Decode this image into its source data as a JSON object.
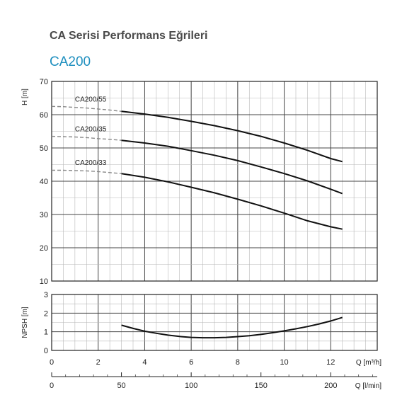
{
  "header": {
    "title": "CA Serisi Performans Eğrileri",
    "model": "CA200"
  },
  "chart_data": [
    {
      "type": "line",
      "name": "head-chart",
      "ylabel": "H [m]",
      "xlim": [
        0,
        14
      ],
      "ylim": [
        10,
        70
      ],
      "x_ticks": [
        0,
        2,
        4,
        6,
        8,
        10,
        12
      ],
      "y_ticks": [
        10,
        20,
        30,
        40,
        50,
        60,
        70
      ],
      "grid": true,
      "series": [
        {
          "name": "CA200/55",
          "dashed_x": [
            0,
            0.5,
            1,
            1.5,
            2,
            2.5,
            3
          ],
          "dashed_y": [
            62.5,
            62.4,
            62.2,
            62.0,
            61.7,
            61.4,
            61.0
          ],
          "x": [
            3,
            4,
            5,
            6,
            7,
            8,
            9,
            10,
            11,
            12,
            12.5
          ],
          "y": [
            61.0,
            60.2,
            59.2,
            58.0,
            56.7,
            55.2,
            53.5,
            51.5,
            49.3,
            46.8,
            45.9
          ]
        },
        {
          "name": "CA200/35",
          "dashed_x": [
            0,
            0.5,
            1,
            1.5,
            2,
            2.5,
            3
          ],
          "dashed_y": [
            53.5,
            53.4,
            53.3,
            53.1,
            52.8,
            52.6,
            52.3
          ],
          "x": [
            3,
            4,
            5,
            6,
            7,
            8,
            9,
            10,
            11,
            12,
            12.5
          ],
          "y": [
            52.3,
            51.5,
            50.5,
            49.2,
            47.8,
            46.2,
            44.3,
            42.3,
            40.1,
            37.6,
            36.3
          ]
        },
        {
          "name": "CA200/33",
          "dashed_x": [
            0,
            0.5,
            1,
            1.5,
            2,
            2.5,
            3
          ],
          "dashed_y": [
            43.3,
            43.3,
            43.2,
            43.1,
            42.9,
            42.6,
            42.3
          ],
          "x": [
            3,
            4,
            5,
            6,
            7,
            8,
            9,
            10,
            11,
            12,
            12.5
          ],
          "y": [
            42.3,
            41.2,
            39.8,
            38.2,
            36.5,
            34.6,
            32.6,
            30.4,
            28.1,
            26.3,
            25.6
          ]
        }
      ]
    },
    {
      "type": "line",
      "name": "npsh-chart",
      "ylabel": "NPSH [m]",
      "xlabel": "Q [m³/h]",
      "xlabel2": "Q [l/min]",
      "xlim": [
        0,
        14
      ],
      "ylim": [
        0,
        3
      ],
      "x_ticks": [
        0,
        2,
        4,
        6,
        8,
        10,
        12
      ],
      "y_ticks": [
        0,
        1,
        2,
        3
      ],
      "x2_ticks": [
        0,
        50,
        100,
        150,
        200
      ],
      "x2_factor": 16.6667,
      "grid": true,
      "series": [
        {
          "name": "NPSH",
          "x": [
            3,
            3.5,
            4,
            4.5,
            5,
            5.5,
            6,
            6.5,
            7,
            7.5,
            8,
            8.5,
            9,
            9.5,
            10,
            10.5,
            11,
            11.5,
            12,
            12.5
          ],
          "y": [
            1.35,
            1.18,
            1.03,
            0.92,
            0.82,
            0.75,
            0.7,
            0.68,
            0.68,
            0.7,
            0.74,
            0.79,
            0.86,
            0.95,
            1.05,
            1.16,
            1.28,
            1.42,
            1.58,
            1.77
          ]
        }
      ]
    }
  ]
}
